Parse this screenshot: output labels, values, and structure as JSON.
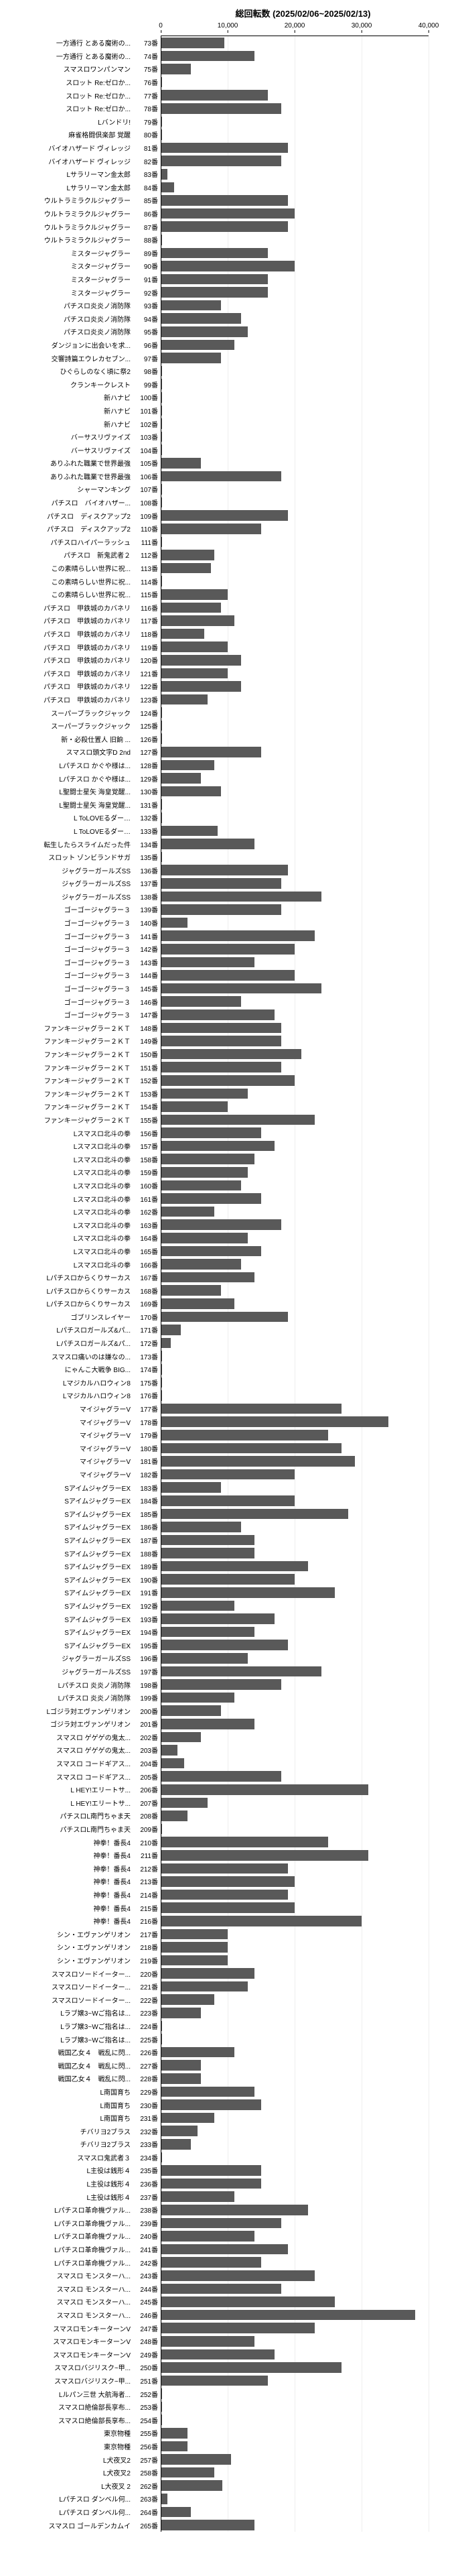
{
  "title": "総回転数 (2025/02/06~2025/02/13)",
  "xmax": 40000,
  "ticks": [
    0,
    10000,
    20000,
    30000,
    40000
  ],
  "bar_color": "#595959",
  "bg_color": "#ffffff",
  "grid_color": "#eeeeee",
  "label_fontsize": 10,
  "title_fontsize": 13,
  "rows": [
    {
      "label": "一方通行 とある魔術の...",
      "seat": "73番",
      "v": 9500
    },
    {
      "label": "一方通行 とある魔術の...",
      "seat": "74番",
      "v": 14000
    },
    {
      "label": "スマスロワンパンマン",
      "seat": "75番",
      "v": 4500
    },
    {
      "label": "スロット Re:ゼロか...",
      "seat": "76番",
      "v": 200
    },
    {
      "label": "スロット Re:ゼロか...",
      "seat": "77番",
      "v": 16000
    },
    {
      "label": "スロット Re:ゼロか...",
      "seat": "78番",
      "v": 18000
    },
    {
      "label": "Lバンドリ!",
      "seat": "79番",
      "v": 200
    },
    {
      "label": "麻雀格闘倶楽部 覚醒",
      "seat": "80番",
      "v": 200
    },
    {
      "label": "バイオハザード ヴィレッジ",
      "seat": "81番",
      "v": 19000
    },
    {
      "label": "バイオハザード ヴィレッジ",
      "seat": "82番",
      "v": 18000
    },
    {
      "label": "Lサラリーマン金太郎",
      "seat": "83番",
      "v": 1000
    },
    {
      "label": "Lサラリーマン金太郎",
      "seat": "84番",
      "v": 2000
    },
    {
      "label": "ウルトラミラクルジャグラー",
      "seat": "85番",
      "v": 19000
    },
    {
      "label": "ウルトラミラクルジャグラー",
      "seat": "86番",
      "v": 20000
    },
    {
      "label": "ウルトラミラクルジャグラー",
      "seat": "87番",
      "v": 19000
    },
    {
      "label": "ウルトラミラクルジャグラー",
      "seat": "88番",
      "v": 200
    },
    {
      "label": "ミスタージャグラー",
      "seat": "89番",
      "v": 16000
    },
    {
      "label": "ミスタージャグラー",
      "seat": "90番",
      "v": 20000
    },
    {
      "label": "ミスタージャグラー",
      "seat": "91番",
      "v": 16000
    },
    {
      "label": "ミスタージャグラー",
      "seat": "92番",
      "v": 16000
    },
    {
      "label": "パチスロ炎炎ノ消防隊",
      "seat": "93番",
      "v": 9000
    },
    {
      "label": "パチスロ炎炎ノ消防隊",
      "seat": "94番",
      "v": 12000
    },
    {
      "label": "パチスロ炎炎ノ消防隊",
      "seat": "95番",
      "v": 13000
    },
    {
      "label": "ダンジョンに出会いを求...",
      "seat": "96番",
      "v": 11000
    },
    {
      "label": "交響詩篇エウレカセブン...",
      "seat": "97番",
      "v": 9000
    },
    {
      "label": "ひぐらしのなく頃に祭2",
      "seat": "98番",
      "v": 200
    },
    {
      "label": "クランキークレスト",
      "seat": "99番",
      "v": 200
    },
    {
      "label": "新ハナビ",
      "seat": "100番",
      "v": 200
    },
    {
      "label": "新ハナビ",
      "seat": "101番",
      "v": 200
    },
    {
      "label": "新ハナビ",
      "seat": "102番",
      "v": 200
    },
    {
      "label": "バーサスリヴァイズ",
      "seat": "103番",
      "v": 200
    },
    {
      "label": "バーサスリヴァイズ",
      "seat": "104番",
      "v": 200
    },
    {
      "label": "ありふれた職業で世界最強",
      "seat": "105番",
      "v": 6000
    },
    {
      "label": "ありふれた職業で世界最強",
      "seat": "106番",
      "v": 18000
    },
    {
      "label": "シャーマンキング",
      "seat": "107番",
      "v": 200
    },
    {
      "label": "パチスロ　バイオハザー...",
      "seat": "108番",
      "v": 200
    },
    {
      "label": "パチスロ　ディスクアップ2",
      "seat": "109番",
      "v": 19000
    },
    {
      "label": "パチスロ　ディスクアップ2",
      "seat": "110番",
      "v": 15000
    },
    {
      "label": "パチスロハイパーラッシュ",
      "seat": "111番",
      "v": 200
    },
    {
      "label": "パチスロ　新鬼武者２",
      "seat": "112番",
      "v": 8000
    },
    {
      "label": "この素晴らしい世界に祝...",
      "seat": "113番",
      "v": 7500
    },
    {
      "label": "この素晴らしい世界に祝...",
      "seat": "114番",
      "v": 200
    },
    {
      "label": "この素晴らしい世界に祝...",
      "seat": "115番",
      "v": 10000
    },
    {
      "label": "パチスロ　甲鉄城のカバネリ",
      "seat": "116番",
      "v": 9000
    },
    {
      "label": "パチスロ　甲鉄城のカバネリ",
      "seat": "117番",
      "v": 11000
    },
    {
      "label": "パチスロ　甲鉄城のカバネリ",
      "seat": "118番",
      "v": 6500
    },
    {
      "label": "パチスロ　甲鉄城のカバネリ",
      "seat": "119番",
      "v": 10000
    },
    {
      "label": "パチスロ　甲鉄城のカバネリ",
      "seat": "120番",
      "v": 12000
    },
    {
      "label": "パチスロ　甲鉄城のカバネリ",
      "seat": "121番",
      "v": 10000
    },
    {
      "label": "パチスロ　甲鉄城のカバネリ",
      "seat": "122番",
      "v": 12000
    },
    {
      "label": "パチスロ　甲鉄城のカバネリ",
      "seat": "123番",
      "v": 7000
    },
    {
      "label": "スーパーブラックジャック",
      "seat": "124番",
      "v": 200
    },
    {
      "label": "スーパーブラックジャック",
      "seat": "125番",
      "v": 200
    },
    {
      "label": "新・必殺仕置人 旧餉 ...",
      "seat": "126番",
      "v": 200
    },
    {
      "label": "スマスロ頭文字D 2nd",
      "seat": "127番",
      "v": 15000
    },
    {
      "label": "Lパチスロ かぐや様は...",
      "seat": "128番",
      "v": 8000
    },
    {
      "label": "Lパチスロ かぐや様は...",
      "seat": "129番",
      "v": 6000
    },
    {
      "label": "L聖闘士星矢 海皇覚醒...",
      "seat": "130番",
      "v": 9000
    },
    {
      "label": "L聖闘士星矢 海皇覚醒...",
      "seat": "131番",
      "v": 200
    },
    {
      "label": "L ToLOVEるダー…",
      "seat": "132番",
      "v": 200
    },
    {
      "label": "L ToLOVEるダー…",
      "seat": "133番",
      "v": 8500
    },
    {
      "label": "転生したらスライムだった件",
      "seat": "134番",
      "v": 14000
    },
    {
      "label": "スロット ゾンビランドサガ",
      "seat": "135番",
      "v": 200
    },
    {
      "label": "ジャグラーガールズSS",
      "seat": "136番",
      "v": 19000
    },
    {
      "label": "ジャグラーガールズSS",
      "seat": "137番",
      "v": 18000
    },
    {
      "label": "ジャグラーガールズSS",
      "seat": "138番",
      "v": 24000
    },
    {
      "label": "ゴーゴージャグラー３",
      "seat": "139番",
      "v": 18000
    },
    {
      "label": "ゴーゴージャグラー３",
      "seat": "140番",
      "v": 4000
    },
    {
      "label": "ゴーゴージャグラー３",
      "seat": "141番",
      "v": 23000
    },
    {
      "label": "ゴーゴージャグラー３",
      "seat": "142番",
      "v": 20000
    },
    {
      "label": "ゴーゴージャグラー３",
      "seat": "143番",
      "v": 14000
    },
    {
      "label": "ゴーゴージャグラー３",
      "seat": "144番",
      "v": 20000
    },
    {
      "label": "ゴーゴージャグラー３",
      "seat": "145番",
      "v": 24000
    },
    {
      "label": "ゴーゴージャグラー３",
      "seat": "146番",
      "v": 12000
    },
    {
      "label": "ゴーゴージャグラー３",
      "seat": "147番",
      "v": 17000
    },
    {
      "label": "ファンキージャグラー２ＫＴ",
      "seat": "148番",
      "v": 18000
    },
    {
      "label": "ファンキージャグラー２ＫＴ",
      "seat": "149番",
      "v": 18000
    },
    {
      "label": "ファンキージャグラー２ＫＴ",
      "seat": "150番",
      "v": 21000
    },
    {
      "label": "ファンキージャグラー２ＫＴ",
      "seat": "151番",
      "v": 18000
    },
    {
      "label": "ファンキージャグラー２ＫＴ",
      "seat": "152番",
      "v": 20000
    },
    {
      "label": "ファンキージャグラー２ＫＴ",
      "seat": "153番",
      "v": 13000
    },
    {
      "label": "ファンキージャグラー２ＫＴ",
      "seat": "154番",
      "v": 10000
    },
    {
      "label": "ファンキージャグラー２ＫＴ",
      "seat": "155番",
      "v": 23000
    },
    {
      "label": "Lスマスロ北斗の拳",
      "seat": "156番",
      "v": 15000
    },
    {
      "label": "Lスマスロ北斗の拳",
      "seat": "157番",
      "v": 17000
    },
    {
      "label": "Lスマスロ北斗の拳",
      "seat": "158番",
      "v": 14000
    },
    {
      "label": "Lスマスロ北斗の拳",
      "seat": "159番",
      "v": 13000
    },
    {
      "label": "Lスマスロ北斗の拳",
      "seat": "160番",
      "v": 12000
    },
    {
      "label": "Lスマスロ北斗の拳",
      "seat": "161番",
      "v": 15000
    },
    {
      "label": "Lスマスロ北斗の拳",
      "seat": "162番",
      "v": 8000
    },
    {
      "label": "Lスマスロ北斗の拳",
      "seat": "163番",
      "v": 18000
    },
    {
      "label": "Lスマスロ北斗の拳",
      "seat": "164番",
      "v": 13000
    },
    {
      "label": "Lスマスロ北斗の拳",
      "seat": "165番",
      "v": 15000
    },
    {
      "label": "Lスマスロ北斗の拳",
      "seat": "166番",
      "v": 12000
    },
    {
      "label": "Lパチスロからくりサーカス",
      "seat": "167番",
      "v": 14000
    },
    {
      "label": "Lパチスロからくりサーカス",
      "seat": "168番",
      "v": 9000
    },
    {
      "label": "Lパチスロからくりサーカス",
      "seat": "169番",
      "v": 11000
    },
    {
      "label": "ゴブリンスレイヤー",
      "seat": "170番",
      "v": 19000
    },
    {
      "label": "Lパチスロガールズ&パ...",
      "seat": "171番",
      "v": 3000
    },
    {
      "label": "Lパチスロガールズ&パ...",
      "seat": "172番",
      "v": 1500
    },
    {
      "label": "スマスロ痛いのは嫌なの...",
      "seat": "173番",
      "v": 200
    },
    {
      "label": "にゃんこ大戦争 BIG...",
      "seat": "174番",
      "v": 200
    },
    {
      "label": "Lマジカルハロウィン8",
      "seat": "175番",
      "v": 200
    },
    {
      "label": "Lマジカルハロウィン8",
      "seat": "176番",
      "v": 200
    },
    {
      "label": "マイジャグラーV",
      "seat": "177番",
      "v": 27000
    },
    {
      "label": "マイジャグラーV",
      "seat": "178番",
      "v": 34000
    },
    {
      "label": "マイジャグラーV",
      "seat": "179番",
      "v": 25000
    },
    {
      "label": "マイジャグラーV",
      "seat": "180番",
      "v": 27000
    },
    {
      "label": "マイジャグラーV",
      "seat": "181番",
      "v": 29000
    },
    {
      "label": "マイジャグラーV",
      "seat": "182番",
      "v": 20000
    },
    {
      "label": "SアイムジャグラーEX",
      "seat": "183番",
      "v": 9000
    },
    {
      "label": "SアイムジャグラーEX",
      "seat": "184番",
      "v": 20000
    },
    {
      "label": "SアイムジャグラーEX",
      "seat": "185番",
      "v": 28000
    },
    {
      "label": "SアイムジャグラーEX",
      "seat": "186番",
      "v": 12000
    },
    {
      "label": "SアイムジャグラーEX",
      "seat": "187番",
      "v": 14000
    },
    {
      "label": "SアイムジャグラーEX",
      "seat": "188番",
      "v": 14000
    },
    {
      "label": "SアイムジャグラーEX",
      "seat": "189番",
      "v": 22000
    },
    {
      "label": "SアイムジャグラーEX",
      "seat": "190番",
      "v": 20000
    },
    {
      "label": "SアイムジャグラーEX",
      "seat": "191番",
      "v": 26000
    },
    {
      "label": "SアイムジャグラーEX",
      "seat": "192番",
      "v": 11000
    },
    {
      "label": "SアイムジャグラーEX",
      "seat": "193番",
      "v": 17000
    },
    {
      "label": "SアイムジャグラーEX",
      "seat": "194番",
      "v": 14000
    },
    {
      "label": "SアイムジャグラーEX",
      "seat": "195番",
      "v": 19000
    },
    {
      "label": "ジャグラーガールズSS",
      "seat": "196番",
      "v": 13000
    },
    {
      "label": "ジャグラーガールズSS",
      "seat": "197番",
      "v": 24000
    },
    {
      "label": "Lパチスロ 炎炎ノ消防隊",
      "seat": "198番",
      "v": 18000
    },
    {
      "label": "Lパチスロ 炎炎ノ消防隊",
      "seat": "199番",
      "v": 11000
    },
    {
      "label": "Lゴジラ対エヴァンゲリオン",
      "seat": "200番",
      "v": 9000
    },
    {
      "label": "ゴジラ対エヴァンゲリオン",
      "seat": "201番",
      "v": 14000
    },
    {
      "label": "スマスロ ゲゲゲの鬼太...",
      "seat": "202番",
      "v": 6000
    },
    {
      "label": "スマスロ ゲゲゲの鬼太...",
      "seat": "203番",
      "v": 2500
    },
    {
      "label": "スマスロ コードギアス...",
      "seat": "204番",
      "v": 3500
    },
    {
      "label": "スマスロ コードギアス...",
      "seat": "205番",
      "v": 18000
    },
    {
      "label": "L HEY!エリートサ...",
      "seat": "206番",
      "v": 31000
    },
    {
      "label": "L HEY!エリートサ...",
      "seat": "207番",
      "v": 7000
    },
    {
      "label": "パチスロL南門ちゃま天",
      "seat": "208番",
      "v": 4000
    },
    {
      "label": "パチスロL南門ちゃま天",
      "seat": "209番",
      "v": 200
    },
    {
      "label": "神拳！番長4",
      "seat": "210番",
      "v": 25000
    },
    {
      "label": "神拳！番長4",
      "seat": "211番",
      "v": 31000
    },
    {
      "label": "神拳！番長4",
      "seat": "212番",
      "v": 19000
    },
    {
      "label": "神拳！番長4",
      "seat": "213番",
      "v": 20000
    },
    {
      "label": "神拳！番長4",
      "seat": "214番",
      "v": 19000
    },
    {
      "label": "神拳！番長4",
      "seat": "215番",
      "v": 20000
    },
    {
      "label": "神拳！番長4",
      "seat": "216番",
      "v": 30000
    },
    {
      "label": "シン・エヴァンゲリオン",
      "seat": "217番",
      "v": 10000
    },
    {
      "label": "シン・エヴァンゲリオン",
      "seat": "218番",
      "v": 10000
    },
    {
      "label": "シン・エヴァンゲリオン",
      "seat": "219番",
      "v": 10000
    },
    {
      "label": "スマスロソードイーター...",
      "seat": "220番",
      "v": 14000
    },
    {
      "label": "スマスロソードイーター...",
      "seat": "221番",
      "v": 13000
    },
    {
      "label": "スマスロソードイーター...",
      "seat": "222番",
      "v": 8000
    },
    {
      "label": "Lラブ嬢3~Wご指名は...",
      "seat": "223番",
      "v": 6000
    },
    {
      "label": "Lラブ嬢3~Wご指名は...",
      "seat": "224番",
      "v": 200
    },
    {
      "label": "Lラブ嬢3~Wご指名は...",
      "seat": "225番",
      "v": 200
    },
    {
      "label": "戦国乙女４　戦乱に閃...",
      "seat": "226番",
      "v": 11000
    },
    {
      "label": "戦国乙女４　戦乱に閃...",
      "seat": "227番",
      "v": 6000
    },
    {
      "label": "戦国乙女４　戦乱に閃...",
      "seat": "228番",
      "v": 6000
    },
    {
      "label": "L南国育ち",
      "seat": "229番",
      "v": 14000
    },
    {
      "label": "L南国育ち",
      "seat": "230番",
      "v": 15000
    },
    {
      "label": "L南国育ち",
      "seat": "231番",
      "v": 8000
    },
    {
      "label": "チバリヨ2ブラス",
      "seat": "232番",
      "v": 5500
    },
    {
      "label": "チバリヨ2ブラス",
      "seat": "233番",
      "v": 4500
    },
    {
      "label": "スマスロ鬼武者３",
      "seat": "234番",
      "v": 200
    },
    {
      "label": "L主役は銭形４",
      "seat": "235番",
      "v": 15000
    },
    {
      "label": "L主役は銭形４",
      "seat": "236番",
      "v": 15000
    },
    {
      "label": "L主役は銭形４",
      "seat": "237番",
      "v": 11000
    },
    {
      "label": "Lパチスロ革命機ヴァル...",
      "seat": "238番",
      "v": 22000
    },
    {
      "label": "Lパチスロ革命機ヴァル...",
      "seat": "239番",
      "v": 18000
    },
    {
      "label": "Lパチスロ革命機ヴァル...",
      "seat": "240番",
      "v": 14000
    },
    {
      "label": "Lパチスロ革命機ヴァル...",
      "seat": "241番",
      "v": 19000
    },
    {
      "label": "Lパチスロ革命機ヴァル...",
      "seat": "242番",
      "v": 15000
    },
    {
      "label": "スマスロ モンスターハ...",
      "seat": "243番",
      "v": 23000
    },
    {
      "label": "スマスロ モンスターハ...",
      "seat": "244番",
      "v": 18000
    },
    {
      "label": "スマスロ モンスターハ...",
      "seat": "245番",
      "v": 26000
    },
    {
      "label": "スマスロ モンスターハ...",
      "seat": "246番",
      "v": 38000
    },
    {
      "label": "スマスロモンキーターンV",
      "seat": "247番",
      "v": 23000
    },
    {
      "label": "スマスロモンキーターンV",
      "seat": "248番",
      "v": 14000
    },
    {
      "label": "スマスロモンキーターンV",
      "seat": "249番",
      "v": 17000
    },
    {
      "label": "スマスロバジリスク~甲...",
      "seat": "250番",
      "v": 27000
    },
    {
      "label": "スマスロバジリスク~甲...",
      "seat": "251番",
      "v": 16000
    },
    {
      "label": "Lルパン三世 大航海者...",
      "seat": "252番",
      "v": 200
    },
    {
      "label": "スマスロ絶倫部長享布...",
      "seat": "253番",
      "v": 200
    },
    {
      "label": "スマスロ絶倫部長享布...",
      "seat": "254番",
      "v": 200
    },
    {
      "label": "東京物種",
      "seat": "255番",
      "v": 4000
    },
    {
      "label": "東京物種",
      "seat": "256番",
      "v": 4000
    },
    {
      "label": "L犬夜叉2",
      "seat": "257番",
      "v": 10500
    },
    {
      "label": "L犬夜叉2",
      "seat": "258番",
      "v": 8000
    },
    {
      "label": "L大夜叉 2",
      "seat": "262番",
      "v": 9200
    },
    {
      "label": "Lパチスロ ダンベル何...",
      "seat": "263番",
      "v": 1000
    },
    {
      "label": "Lパチスロ ダンベル何...",
      "seat": "264番",
      "v": 4500
    },
    {
      "label": "スマスロ ゴールデンカムイ",
      "seat": "265番",
      "v": 14000
    }
  ]
}
